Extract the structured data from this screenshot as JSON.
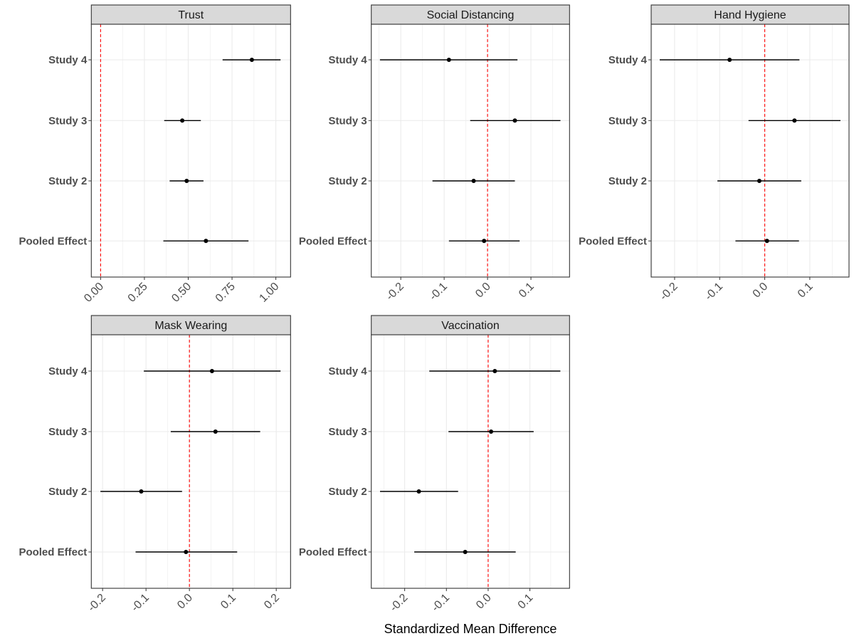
{
  "chart_data": {
    "type": "forest",
    "xlabel": "Standardized Mean Difference",
    "categories": [
      "Study 4",
      "Study 3",
      "Study 2",
      "Pooled Effect"
    ],
    "colors": {
      "reference_line": "#FF0000",
      "points": "#000000",
      "strip": "#D9D9D9",
      "grid": "#EBEBEB"
    },
    "panels": [
      {
        "title": "Trust",
        "xlim": [
          -0.053,
          1.084
        ],
        "ticks": [
          0,
          0.25,
          0.5,
          0.75,
          1.0
        ],
        "tick_labels": [
          "0.00",
          "0.25",
          "0.50",
          "0.75",
          "1.00"
        ],
        "minor_step": 0.125,
        "estimates": [
          0.863,
          0.466,
          0.491,
          0.601
        ],
        "ci_low": [
          0.696,
          0.363,
          0.394,
          0.358
        ],
        "ci_high": [
          1.027,
          0.572,
          0.587,
          0.844
        ]
      },
      {
        "title": "Social Distancing",
        "xlim": [
          -0.268,
          0.189
        ],
        "ticks": [
          -0.2,
          -0.1,
          0.0,
          0.1
        ],
        "tick_labels": [
          "-0.2",
          "-0.1",
          "0.0",
          "0.1"
        ],
        "minor_step": 0.05,
        "estimates": [
          -0.089,
          0.063,
          -0.032,
          -0.008
        ],
        "ci_low": [
          -0.248,
          -0.04,
          -0.127,
          -0.089
        ],
        "ci_high": [
          0.069,
          0.168,
          0.063,
          0.074
        ]
      },
      {
        "title": "Hand Hygiene",
        "xlim": [
          -0.252,
          0.187
        ],
        "ticks": [
          -0.2,
          -0.1,
          0.0,
          0.1
        ],
        "tick_labels": [
          "-0.2",
          "-0.1",
          "0.0",
          "0.1"
        ],
        "minor_step": 0.05,
        "estimates": [
          -0.078,
          0.066,
          -0.012,
          0.005
        ],
        "ci_low": [
          -0.233,
          -0.036,
          -0.105,
          -0.065
        ],
        "ci_high": [
          0.077,
          0.168,
          0.081,
          0.076
        ]
      },
      {
        "title": "Mask Wearing",
        "xlim": [
          -0.226,
          0.233
        ],
        "ticks": [
          -0.2,
          -0.1,
          0.0,
          0.1,
          0.2
        ],
        "tick_labels": [
          "-0.2",
          "-0.1",
          "0.0",
          "0.1",
          "0.2"
        ],
        "minor_step": 0.05,
        "estimates": [
          0.052,
          0.06,
          -0.111,
          -0.008
        ],
        "ci_low": [
          -0.105,
          -0.043,
          -0.205,
          -0.124
        ],
        "ci_high": [
          0.21,
          0.163,
          -0.017,
          0.11
        ]
      },
      {
        "title": "Vaccination",
        "xlim": [
          -0.28,
          0.195
        ],
        "ticks": [
          -0.2,
          -0.1,
          0.0,
          0.1
        ],
        "tick_labels": [
          "-0.2",
          "-0.1",
          "0.0",
          "0.1"
        ],
        "minor_step": 0.05,
        "estimates": [
          0.016,
          0.007,
          -0.166,
          -0.055
        ],
        "ci_low": [
          -0.141,
          -0.095,
          -0.259,
          -0.177
        ],
        "ci_high": [
          0.173,
          0.109,
          -0.072,
          0.066
        ]
      }
    ]
  }
}
